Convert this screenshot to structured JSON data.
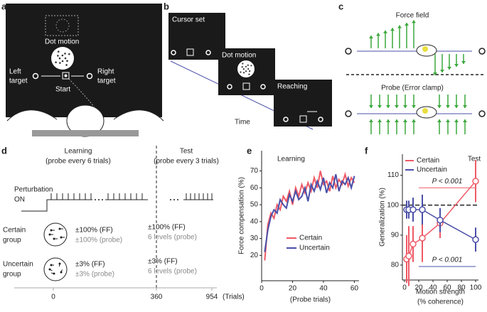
{
  "panel_labels": [
    "a",
    "b",
    "c",
    "d",
    "e",
    "f"
  ],
  "panel_a": {
    "dot_motion": "Dot motion",
    "left_target": [
      "Left",
      "target"
    ],
    "right_target": [
      "Right",
      "target"
    ],
    "start": "Start"
  },
  "panel_b": {
    "screens": [
      "Cursor set",
      "Dot motion",
      "Reaching"
    ],
    "time": "Time"
  },
  "panel_c": {
    "force_field": "Force field",
    "probe": "Probe (Error clamp)"
  },
  "panel_d": {
    "learning": [
      "Learning",
      "(probe every 6 trials)"
    ],
    "test": [
      "Test",
      "(probe every 3 trials)"
    ],
    "perturbation": [
      "Perturbation",
      "ON"
    ],
    "certain": {
      "group": [
        "Certain",
        "group"
      ],
      "learning": [
        "±100% (FF)",
        "±100% (probe)"
      ],
      "test": [
        "±100% (FF)",
        "6 levels (probe)"
      ]
    },
    "uncertain": {
      "group": [
        "Uncertain",
        "group"
      ],
      "learning": [
        "±3% (FF)",
        "±3% (probe)"
      ],
      "test": [
        "±3% (FF)",
        "6 levels (probe)"
      ]
    },
    "axis": {
      "ticks": [
        "0",
        "360",
        "954"
      ],
      "unit": "(Trials)"
    }
  },
  "chart_data": [
    {
      "type": "line",
      "title": "Learning",
      "x_label": "(Probe trials)",
      "y_label": "Force compensation (%)",
      "x": [
        2,
        4,
        6,
        8,
        10,
        12,
        14,
        16,
        18,
        20,
        22,
        24,
        26,
        28,
        30,
        32,
        34,
        36,
        38,
        40,
        42,
        44,
        46,
        48,
        50,
        52,
        54,
        56,
        58,
        60
      ],
      "series": [
        {
          "name": "Certain",
          "color": "#ee5a66",
          "values": [
            17,
            38,
            45,
            42,
            50,
            47,
            55,
            52,
            58,
            50,
            60,
            55,
            62,
            57,
            63,
            58,
            66,
            60,
            70,
            62,
            64,
            58,
            67,
            60,
            65,
            62,
            68,
            61,
            66,
            63
          ]
        },
        {
          "name": "Uncertain",
          "color": "#4a4fa8",
          "values": [
            22,
            35,
            43,
            47,
            45,
            53,
            50,
            48,
            56,
            52,
            58,
            53,
            55,
            60,
            52,
            62,
            58,
            64,
            59,
            66,
            57,
            63,
            60,
            68,
            58,
            64,
            62,
            66,
            60,
            67
          ]
        }
      ],
      "xlim": [
        0,
        63
      ],
      "ylim": [
        5,
        82
      ],
      "xticks": [
        0,
        20,
        40,
        60
      ],
      "yticks": [
        20,
        30,
        40,
        50,
        60,
        70
      ]
    },
    {
      "type": "errorbar",
      "title": "Test",
      "x_label": [
        "Motion strength",
        "(% coherence)"
      ],
      "y_label": "Generalization (%)",
      "x": [
        3,
        6,
        12,
        25,
        50,
        100
      ],
      "series": [
        {
          "name": "Certain",
          "color": "#ee5a66",
          "values": [
            82,
            83,
            87,
            89,
            94,
            108
          ],
          "errors": [
            8,
            10,
            6,
            8,
            5,
            7
          ]
        },
        {
          "name": "Uncertain",
          "color": "#4a4fa8",
          "values": [
            98.5,
            98.5,
            98.5,
            98.5,
            95,
            88.5
          ],
          "errors": [
            3,
            3,
            4,
            5,
            4,
            4
          ]
        }
      ],
      "reference_line": 100,
      "significance": [
        {
          "label": "P < 0.001",
          "x": [
            20,
            100
          ],
          "y": 105.8,
          "color": "#ee5a66"
        },
        {
          "label": "P < 0.001",
          "x": [
            20,
            100
          ],
          "y": 79.5,
          "color": "#4a4fa8"
        }
      ],
      "xlim": [
        -3,
        104
      ],
      "ylim": [
        75,
        117
      ],
      "xticks": [
        0,
        20,
        40,
        60,
        80,
        100
      ],
      "yticks": [
        80,
        90,
        100,
        110
      ]
    }
  ]
}
